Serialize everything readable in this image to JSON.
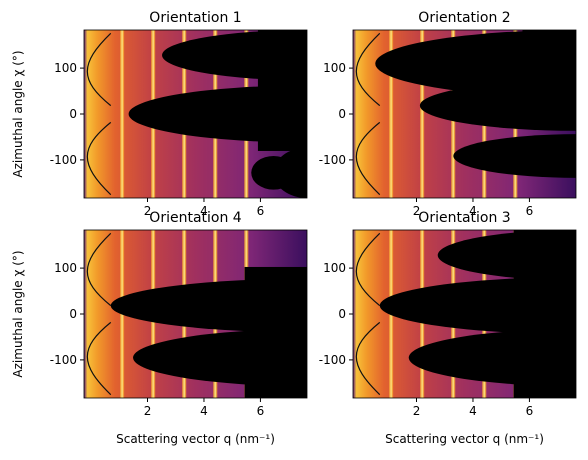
{
  "chart_data": [
    {
      "type": "image",
      "title": "Orientation 1",
      "ylabel": "Azimuthal angle χ (°)",
      "xlim": [
        -0.25,
        7.65
      ],
      "ylim": [
        -183,
        183
      ],
      "xticks": [
        2,
        4,
        6
      ],
      "yticks": [
        -100,
        0,
        100
      ]
    },
    {
      "type": "image",
      "title": "Orientation 2",
      "xlim": [
        -0.25,
        7.65
      ],
      "ylim": [
        -183,
        183
      ],
      "xticks": [
        2,
        4,
        6
      ],
      "yticks": [
        -100,
        0,
        100
      ]
    },
    {
      "type": "image",
      "title": "Orientation 4",
      "ylabel": "Azimuthal angle χ (°)",
      "xlabel": "Scattering vector q (nm⁻¹)",
      "xlim": [
        -0.25,
        7.65
      ],
      "ylim": [
        -183,
        183
      ],
      "xticks": [
        2,
        4,
        6
      ],
      "yticks": [
        -100,
        0,
        100
      ]
    },
    {
      "type": "image",
      "title": "Orientation 3",
      "xlabel": "Scattering vector q (nm⁻¹)",
      "xlim": [
        -0.25,
        7.65
      ],
      "ylim": [
        -183,
        183
      ],
      "xticks": [
        2,
        4,
        6
      ],
      "yticks": [
        -100,
        0,
        100
      ]
    }
  ]
}
